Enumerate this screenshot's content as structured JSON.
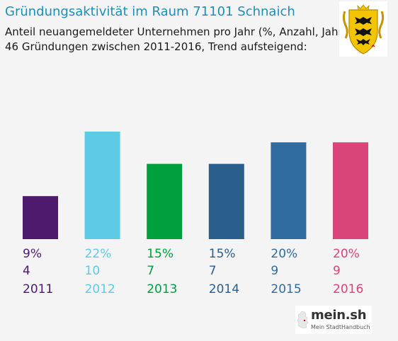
{
  "header": {
    "title": "Gründungsaktivität im Raum 71101 Schnaich",
    "subtitle_line1": "Anteil neuangemeldeter Unternehmen pro Jahr (%, Anzahl, Jahr)",
    "subtitle_line2": "46 Gründungen zwischen 2011-2016, Trend aufsteigend:"
  },
  "logo": {
    "name": "mein.sh",
    "tagline": "Mein StadtHandbuch"
  },
  "coat_of_arms": {
    "icon": "baden-wuerttemberg-coat-of-arms-icon",
    "colors": [
      "#f2c500",
      "#111111",
      "#d40000"
    ]
  },
  "chart_data": {
    "type": "bar",
    "categories": [
      "2011",
      "2012",
      "2013",
      "2014",
      "2015",
      "2016"
    ],
    "percent_labels": [
      "9%",
      "22%",
      "15%",
      "15%",
      "20%",
      "20%"
    ],
    "values": [
      4,
      10,
      7,
      7,
      9,
      9
    ],
    "colors": [
      "#4d1a6e",
      "#5ecae6",
      "#00a03e",
      "#2a5f8c",
      "#2f6b9e",
      "#d9447a"
    ],
    "title": "",
    "xlabel": "",
    "ylabel": "",
    "ylim": [
      0,
      10
    ],
    "grid": false,
    "legend": false
  }
}
